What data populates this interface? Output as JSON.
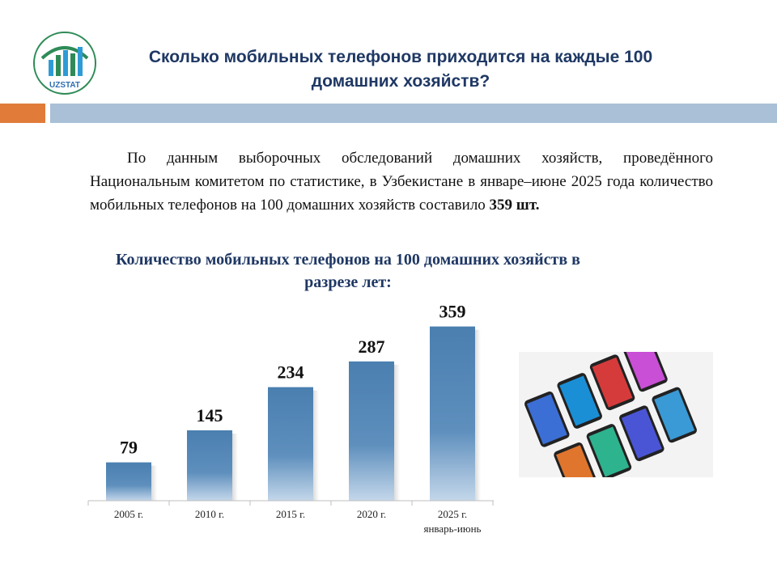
{
  "header": {
    "title": "Сколько мобильных телефонов приходится на каждые 100 домашних хозяйств?",
    "logo_text": "UZSTAT"
  },
  "intro": {
    "text": "По данным выборочных обследований домашних хозяйств, проведённого Национальным комитетом по статистике, в Узбекистане в январе–июне 2025 года количество мобильных телефонов на 100 домашних хозяйств составило ",
    "highlight": "359 шт."
  },
  "colors": {
    "accent_orange": "#e07b39",
    "band_blue": "#a9c0d6",
    "title_blue": "#1f3864",
    "bar_blue": "#4a7fb0"
  },
  "chart_data": {
    "type": "bar",
    "title": "Количество мобильных телефонов на 100 домашних хозяйств в разрезе лет:",
    "categories": [
      [
        "2005 г."
      ],
      [
        "2010 г."
      ],
      [
        "2015 г."
      ],
      [
        "2020 г."
      ],
      [
        "2025 г.",
        "январь-июнь"
      ]
    ],
    "values": [
      79,
      145,
      234,
      287,
      359
    ],
    "ylim": [
      0,
      420
    ],
    "grid": false,
    "legend": "none"
  }
}
